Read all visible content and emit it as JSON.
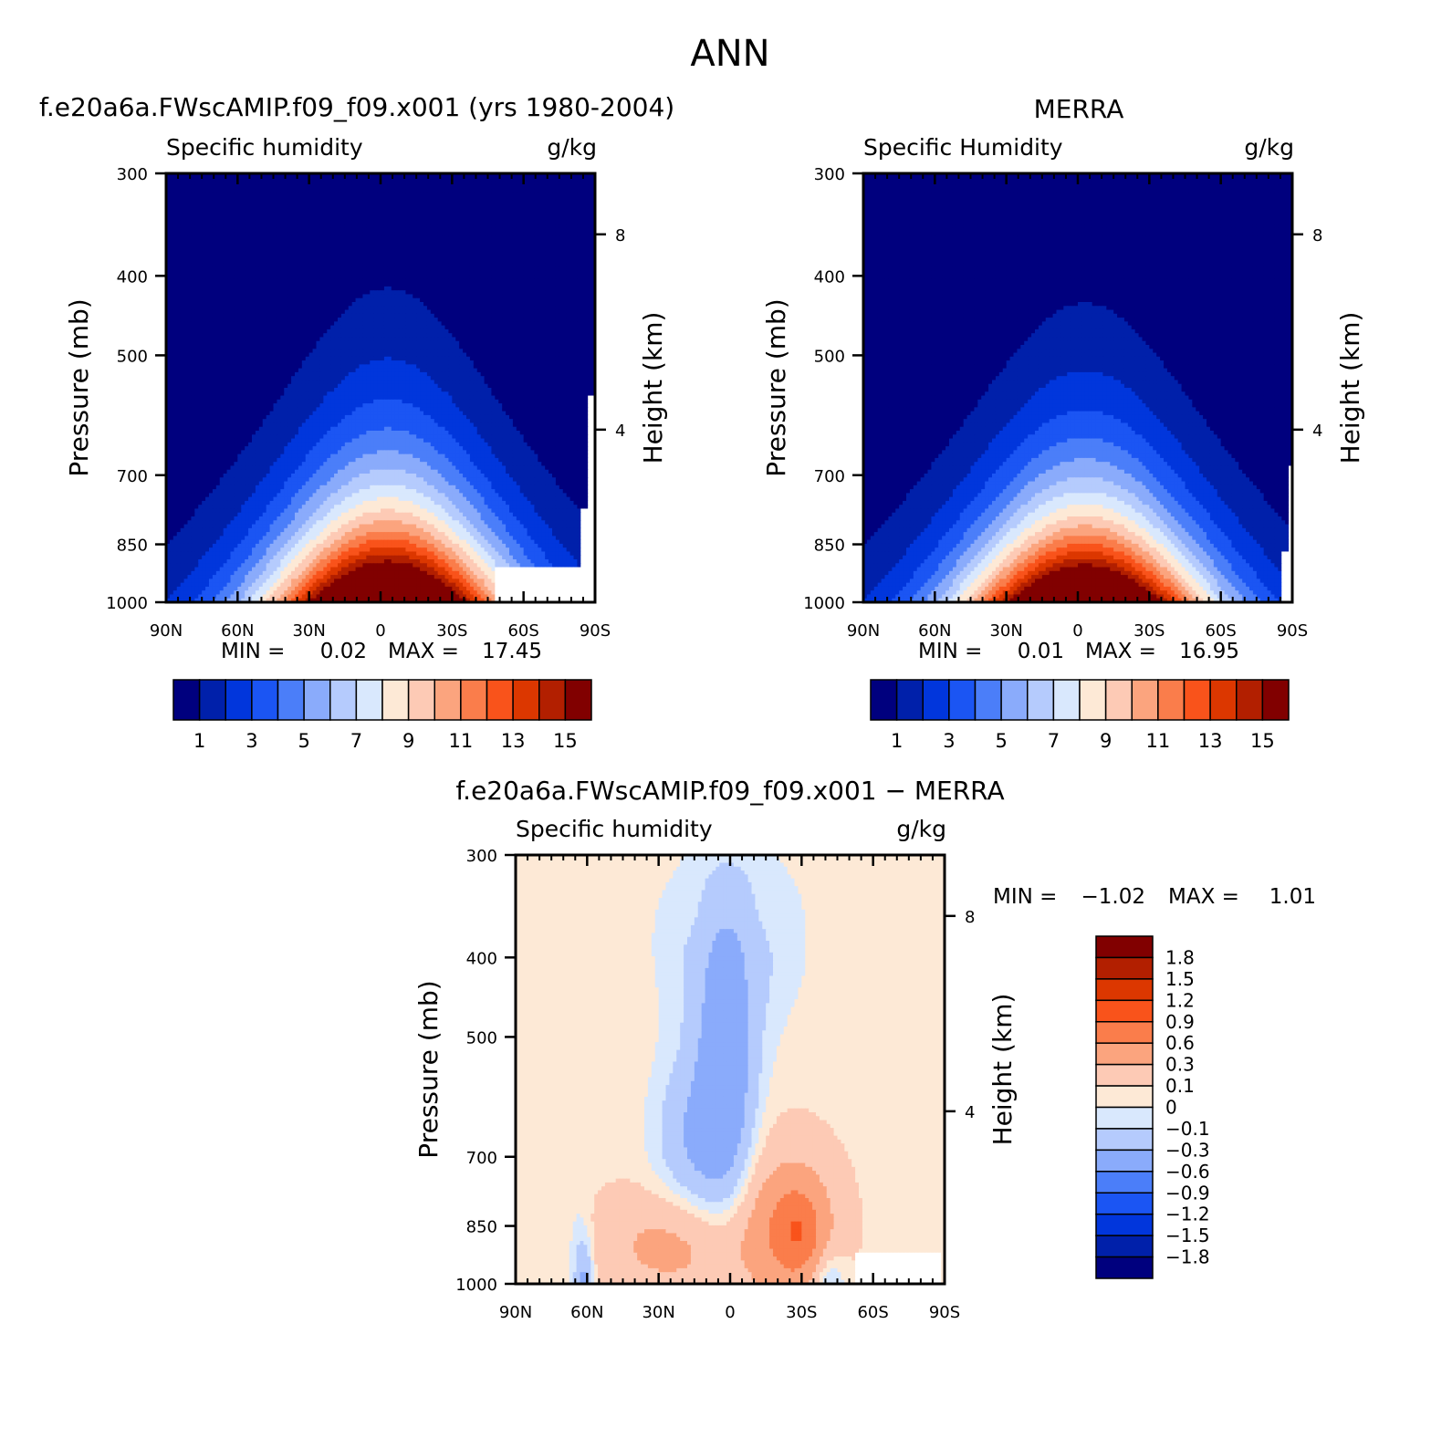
{
  "page_title": "ANN",
  "chart_data": [
    {
      "type": "heatmap",
      "title": "f.e20a6a.FWscAMIP.f09_f09.x001 (yrs 1980-2004)",
      "variable_label": "Specific humidity",
      "units": "g/kg",
      "xlabel": "",
      "ylabel": "Pressure (mb)",
      "y2label": "Height (km)",
      "x_ticks": [
        "90N",
        "60N",
        "30N",
        "0",
        "30S",
        "60S",
        "90S"
      ],
      "y_ticks": [
        "300",
        "400",
        "500",
        "700",
        "850",
        "1000"
      ],
      "y2_ticks": [
        "8",
        "4"
      ],
      "x_range": [
        90,
        -90
      ],
      "y_range_mb": [
        1000,
        300
      ],
      "log_pressure_axis": true,
      "min_label": "MIN =",
      "min_value": "0.02",
      "max_label": "MAX =",
      "max_value": "17.45",
      "field": {
        "peak": 17.45,
        "peak_lat": -3,
        "floor": 0.02,
        "tropopause_sharpness": 1.0
      },
      "contour_levels": [
        1,
        2,
        3,
        4,
        5,
        6,
        7,
        8,
        9,
        10,
        11,
        12,
        13,
        14,
        15
      ],
      "colorbar_labels": [
        "1",
        "3",
        "5",
        "7",
        "9",
        "11",
        "13",
        "15"
      ],
      "colors": [
        "#00007e",
        "#0020aa",
        "#0136dc",
        "#1b55f3",
        "#4b7ef9",
        "#8aabfb",
        "#b5cbfd",
        "#d9e8fd",
        "#fde9d6",
        "#fdcab5",
        "#fba47e",
        "#fa7d4b",
        "#f9531b",
        "#dc3700",
        "#b21f00",
        "#810000"
      ]
    },
    {
      "type": "heatmap",
      "title": "MERRA",
      "variable_label": "Specific Humidity",
      "units": "g/kg",
      "xlabel": "",
      "ylabel": "Pressure (mb)",
      "y2label": "Height (km)",
      "x_ticks": [
        "90N",
        "60N",
        "30N",
        "0",
        "30S",
        "60S",
        "90S"
      ],
      "y_ticks": [
        "300",
        "400",
        "500",
        "700",
        "850",
        "1000"
      ],
      "y2_ticks": [
        "8",
        "4"
      ],
      "x_range": [
        90,
        -90
      ],
      "y_range_mb": [
        1000,
        300
      ],
      "log_pressure_axis": true,
      "min_label": "MIN =",
      "min_value": "0.01",
      "max_label": "MAX =",
      "max_value": "16.95",
      "field": {
        "peak": 16.95,
        "peak_lat": -3,
        "floor": 0.01,
        "tropopause_sharpness": 1.05
      },
      "contour_levels": [
        1,
        2,
        3,
        4,
        5,
        6,
        7,
        8,
        9,
        10,
        11,
        12,
        13,
        14,
        15
      ],
      "colorbar_labels": [
        "1",
        "3",
        "5",
        "7",
        "9",
        "11",
        "13",
        "15"
      ],
      "colors": [
        "#00007e",
        "#0020aa",
        "#0136dc",
        "#1b55f3",
        "#4b7ef9",
        "#8aabfb",
        "#b5cbfd",
        "#d9e8fd",
        "#fde9d6",
        "#fdcab5",
        "#fba47e",
        "#fa7d4b",
        "#f9531b",
        "#dc3700",
        "#b21f00",
        "#810000"
      ]
    },
    {
      "type": "heatmap",
      "title": "f.e20a6a.FWscAMIP.f09_f09.x001 − MERRA",
      "variable_label": "Specific humidity",
      "units": "g/kg",
      "xlabel": "",
      "ylabel": "Pressure (mb)",
      "y2label": "Height (km)",
      "x_ticks": [
        "90N",
        "60N",
        "30N",
        "0",
        "30S",
        "60S",
        "90S"
      ],
      "y_ticks": [
        "300",
        "400",
        "500",
        "700",
        "850",
        "1000"
      ],
      "y2_ticks": [
        "8",
        "4"
      ],
      "x_range": [
        90,
        -90
      ],
      "y_range_mb": [
        1000,
        300
      ],
      "log_pressure_axis": true,
      "min_label": "MIN =",
      "min_value": "−1.02",
      "max_label": "MAX =",
      "max_value": "1.01",
      "contour_levels": [
        -1.8,
        -1.5,
        -1.2,
        -0.9,
        -0.6,
        -0.3,
        -0.1,
        0,
        0.1,
        0.3,
        0.6,
        0.9,
        1.2,
        1.5,
        1.8
      ],
      "colorbar_labels": [
        "1.8",
        "1.5",
        "1.2",
        "0.9",
        "0.6",
        "0.3",
        "0.1",
        "0",
        "−0.1",
        "−0.3",
        "−0.6",
        "−0.9",
        "−1.2",
        "−1.5",
        "−1.8"
      ],
      "colors_top_to_bottom": [
        "#810000",
        "#b21f00",
        "#dc3700",
        "#f9531b",
        "#fa7d4b",
        "#fba47e",
        "#fdcab5",
        "#fde9d6",
        "#d9e8fd",
        "#b5cbfd",
        "#8aabfb",
        "#4b7ef9",
        "#1b55f3",
        "#0136dc",
        "#0020aa",
        "#00007e"
      ]
    }
  ]
}
